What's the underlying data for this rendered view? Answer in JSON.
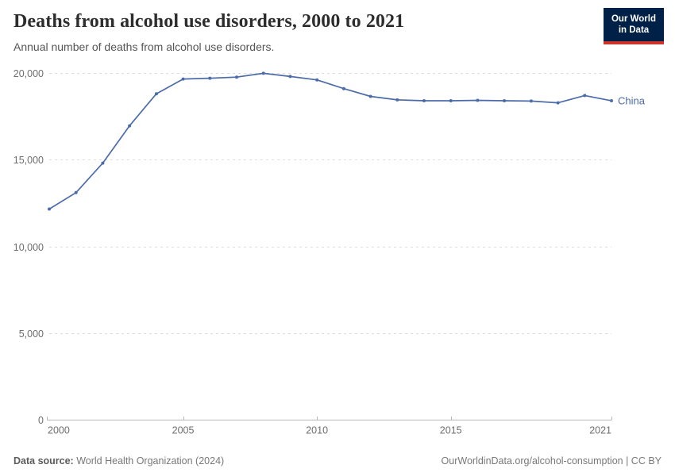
{
  "header": {
    "title": "Deaths from alcohol use disorders, 2000 to 2021",
    "subtitle": "Annual number of deaths from alcohol use disorders.",
    "logo": {
      "line1": "Our World",
      "line2": "in Data",
      "bg_color": "#002147",
      "accent_color": "#CE332C"
    }
  },
  "chart_data": {
    "type": "line",
    "title": "Deaths from alcohol use disorders, 2000 to 2021",
    "subtitle": "Annual number of deaths from alcohol use disorders.",
    "x": [
      2000,
      2001,
      2002,
      2003,
      2004,
      2005,
      2006,
      2007,
      2008,
      2009,
      2010,
      2011,
      2012,
      2013,
      2014,
      2015,
      2016,
      2017,
      2018,
      2019,
      2020,
      2021
    ],
    "series": [
      {
        "name": "China",
        "color": "#4C6CA9",
        "values": [
          12150,
          13100,
          14800,
          16950,
          18800,
          19650,
          19700,
          19760,
          19980,
          19800,
          19600,
          19100,
          18650,
          18450,
          18400,
          18400,
          18420,
          18400,
          18380,
          18280,
          18700,
          18400
        ]
      }
    ],
    "xlim": [
      2000,
      2021
    ],
    "ylim": [
      0,
      20000
    ],
    "xticks": [
      2000,
      2005,
      2010,
      2015,
      2021
    ],
    "xtick_labels": [
      "2000",
      "2005",
      "2010",
      "2015",
      "2021"
    ],
    "yticks": [
      0,
      5000,
      10000,
      15000,
      20000
    ],
    "ytick_labels": [
      "0",
      "5,000",
      "10,000",
      "15,000",
      "20,000"
    ],
    "grid": "horizontal dashed gridlines, no vertical grid",
    "legend": "entity label at right end of line",
    "grid_color": "#dcdcdc",
    "axis_color": "#b8b8b8",
    "tick_label_color": "#6e6e6e"
  },
  "footer": {
    "datasource_label": "Data source:",
    "datasource_value": "World Health Organization (2024)",
    "right_text": "OurWorldinData.org/alcohol-consumption | CC BY"
  }
}
